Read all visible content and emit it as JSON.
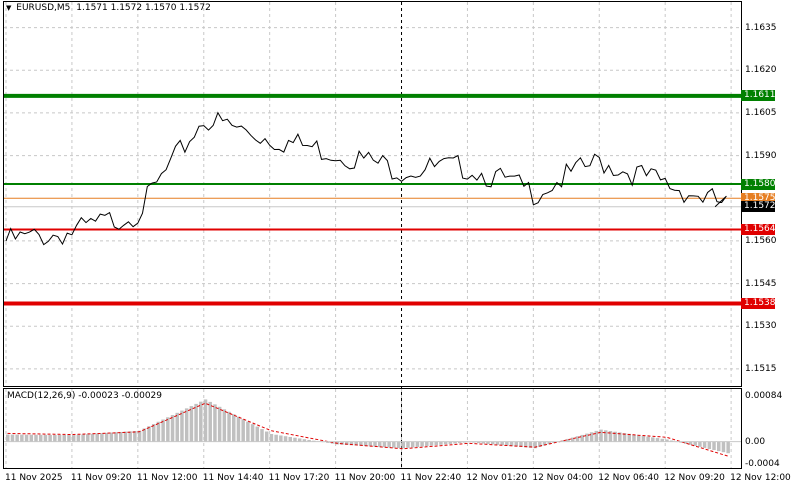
{
  "header": {
    "symbol": "EURUSD,M5",
    "ohlc": "1.1571 1.1572 1.1570 1.1572"
  },
  "macd": {
    "label": "MACD(12,26,9) -0.00023 -0.00029",
    "ticks": [
      "0.00084",
      "0.00",
      "-0.0004"
    ]
  },
  "price_ticks": [
    "1.1635",
    "1.1620",
    "1.1605",
    "1.1590",
    "1.1560",
    "1.1545",
    "1.1530",
    "1.1515"
  ],
  "levels": [
    {
      "label": "1.1611",
      "value": 1.1611,
      "color": "#008000",
      "width": 4
    },
    {
      "label": "1.1580",
      "value": 1.158,
      "color": "#008000",
      "width": 2
    },
    {
      "label": "1.1575",
      "value": 1.1575,
      "color": "#e67e22",
      "width": 1
    },
    {
      "label": "1.1572",
      "value": 1.1572,
      "color": "#000000",
      "width": 0
    },
    {
      "label": "1.1564",
      "value": 1.1564,
      "color": "#e00000",
      "width": 2
    },
    {
      "label": "1.1538",
      "value": 1.1538,
      "color": "#e00000",
      "width": 4
    }
  ],
  "x_ticks": [
    "11 Nov 2025",
    "11 Nov 09:20",
    "11 Nov 12:00",
    "11 Nov 14:40",
    "11 Nov 17:20",
    "11 Nov 20:00",
    "11 Nov 22:40",
    "12 Nov 01:20",
    "12 Nov 04:00",
    "12 Nov 06:40",
    "12 Nov 09:20",
    "12 Nov 12:00"
  ],
  "chart_data": {
    "type": "line",
    "x": [
      "11 Nov 2025",
      "11 Nov 09:20",
      "11 Nov 12:00",
      "11 Nov 14:40",
      "11 Nov 17:20",
      "11 Nov 20:00",
      "11 Nov 22:40",
      "12 Nov 01:20",
      "12 Nov 04:00",
      "12 Nov 06:40",
      "12 Nov 09:20",
      "12 Nov 12:00"
    ],
    "price": [
      1.156,
      1.1563,
      1.157,
      1.1603,
      1.1596,
      1.1591,
      1.1585,
      1.1586,
      1.1577,
      1.1588,
      1.158,
      1.1572
    ],
    "price_ylim": [
      1.1509,
      1.1644
    ],
    "macd_hist": [
      0.00013,
      0.00012,
      0.0002,
      0.00077,
      0.00014,
      -5e-05,
      -0.00012,
      -1e-05,
      -0.00012,
      0.00022,
      4e-05,
      -0.00023
    ],
    "macd_signal": [
      0.00015,
      0.00013,
      0.00018,
      0.0007,
      0.0002,
      -3e-05,
      -0.00013,
      -3e-05,
      -0.0001,
      0.00017,
      8e-05,
      -0.00029
    ],
    "macd_ylim": [
      -0.00048,
      0.00096
    ],
    "crosshair_x": "11 Nov 22:40",
    "grid": true,
    "colors": {
      "price_line": "#000000",
      "hist": "#c0c0c0",
      "signal": "#e00000",
      "grid": "#c8c8c8"
    }
  }
}
